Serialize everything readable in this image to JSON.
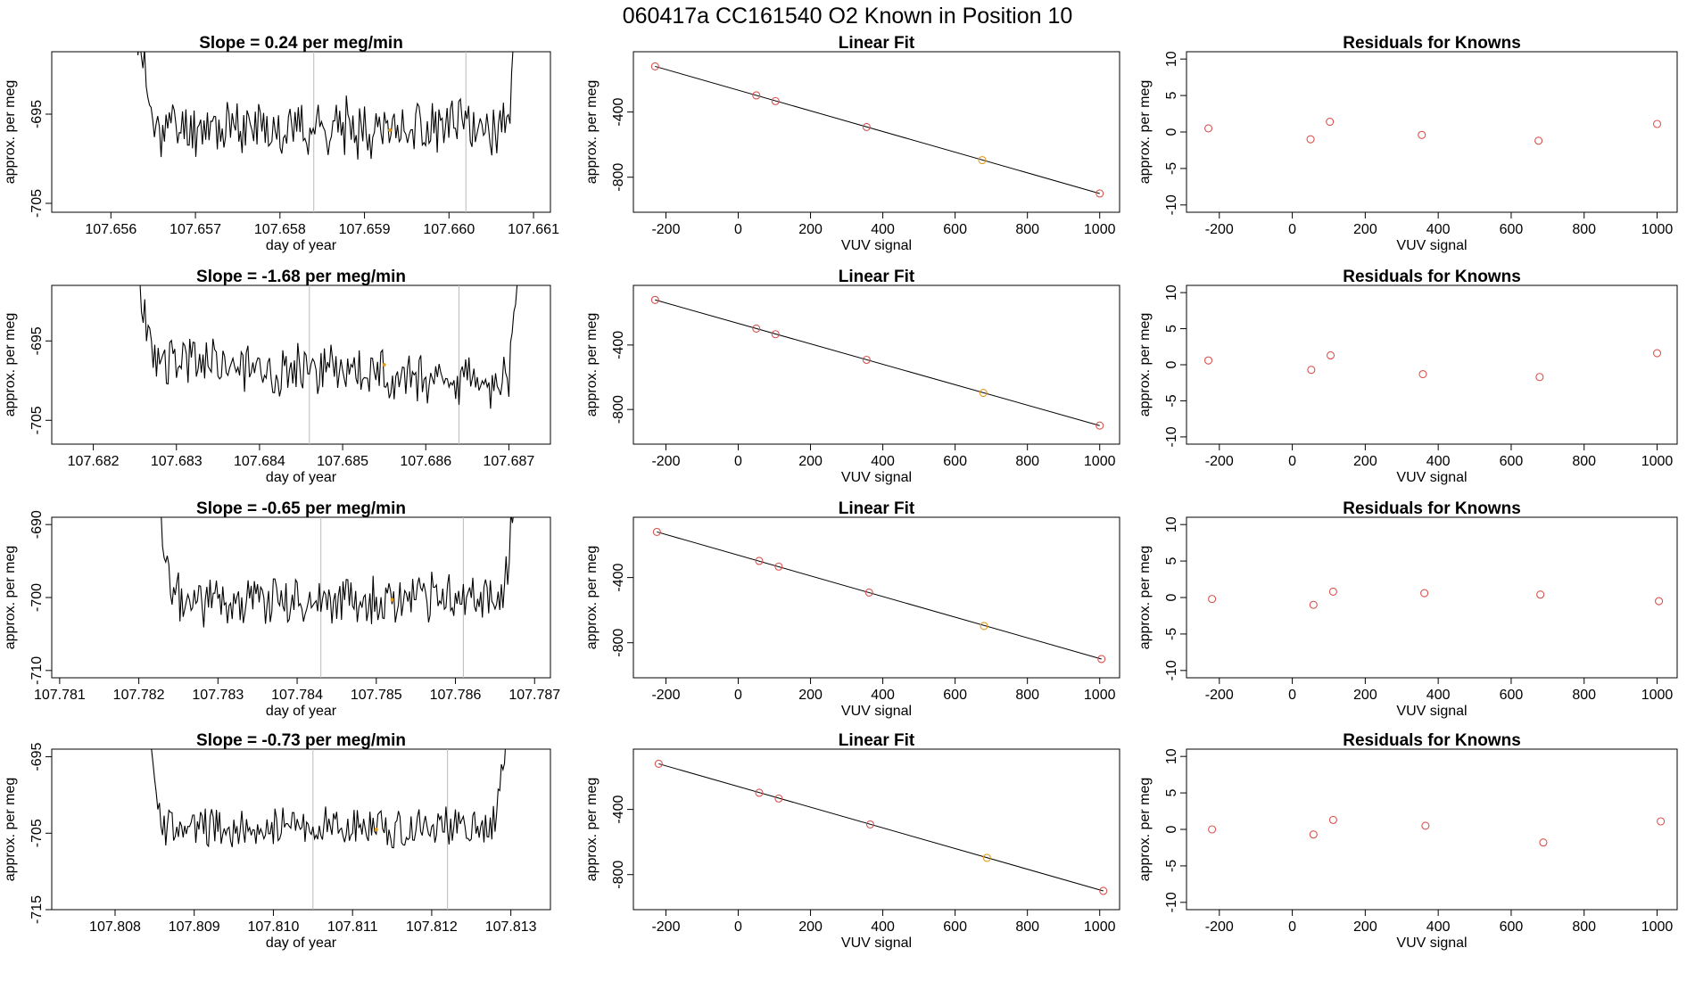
{
  "figure_title": "060417a      CC161540   O2 Known in Position  10",
  "colors": {
    "trace": "#000000",
    "marker_red": "#d9534f",
    "marker_orange": "#e69a1a",
    "vline": "#bbbbbb",
    "frame": "#000000"
  },
  "chart_data": [
    {
      "type": "line",
      "row": 1,
      "title": "Slope =  0.24  per meg/min",
      "xlabel": "day of year",
      "ylabel": "approx. per meg",
      "xlim": [
        107.6553,
        107.6612
      ],
      "ylim": [
        -706,
        -688
      ],
      "xticks": [
        107.656,
        107.657,
        107.658,
        107.659,
        107.66,
        107.661
      ],
      "xtick_labels": [
        "107.656",
        "107.657",
        "107.658",
        "107.659",
        "107.660",
        "107.661"
      ],
      "yticks": [
        -695,
        -705
      ],
      "ytick_labels": [
        "-695",
        "-705"
      ],
      "vlines": [
        107.6584,
        107.6602
      ],
      "trace": {
        "x0": 107.6563,
        "x1": 107.6608,
        "spike_start": 107.6565,
        "spike_end": 107.6607,
        "mean": -696.5,
        "noise": 2.6,
        "ramp_top": -688,
        "seed": 11
      },
      "highlight": {
        "x": 107.6593,
        "y": -696.8
      }
    },
    {
      "type": "scatter",
      "row": 1,
      "title": "Linear Fit",
      "xlabel": "VUV signal",
      "ylabel": "approx. per meg",
      "xlim": [
        -290,
        1055
      ],
      "ylim": [
        -1015,
        -30
      ],
      "xticks": [
        -200,
        0,
        200,
        400,
        600,
        800,
        1000
      ],
      "xtick_labels": [
        "-200",
        "0",
        "200",
        "400",
        "600",
        "800",
        "1000"
      ],
      "yticks": [
        -400,
        -800
      ],
      "ytick_labels": [
        "-400",
        "-800"
      ],
      "fit_line": {
        "x": [
          -230,
          1000
        ],
        "y": [
          -120,
          -900
        ]
      },
      "points": [
        {
          "x": -230,
          "y": -120,
          "color": "red"
        },
        {
          "x": 50,
          "y": -298,
          "color": "red"
        },
        {
          "x": 103,
          "y": -333,
          "color": "red"
        },
        {
          "x": 355,
          "y": -492,
          "color": "red"
        },
        {
          "x": 675,
          "y": -695,
          "color": "orange"
        },
        {
          "x": 1000,
          "y": -900,
          "color": "red"
        }
      ]
    },
    {
      "type": "scatter",
      "row": 1,
      "title": "Residuals for Knowns",
      "xlabel": "VUV signal",
      "ylabel": "approx. per meg",
      "xlim": [
        -290,
        1055
      ],
      "ylim": [
        -11,
        11
      ],
      "xticks": [
        -200,
        0,
        200,
        400,
        600,
        800,
        1000
      ],
      "xtick_labels": [
        "-200",
        "0",
        "200",
        "400",
        "600",
        "800",
        "1000"
      ],
      "yticks": [
        10,
        5,
        0,
        -5,
        -10
      ],
      "ytick_labels": [
        "10",
        "5",
        "0",
        "-5",
        "-10"
      ],
      "points": [
        {
          "x": -230,
          "y": 0.5,
          "color": "red"
        },
        {
          "x": 50,
          "y": -1.0,
          "color": "red"
        },
        {
          "x": 103,
          "y": 1.4,
          "color": "red"
        },
        {
          "x": 355,
          "y": -0.4,
          "color": "red"
        },
        {
          "x": 675,
          "y": -1.2,
          "color": "red"
        },
        {
          "x": 1000,
          "y": 1.1,
          "color": "red"
        }
      ]
    },
    {
      "type": "line",
      "row": 2,
      "title": "Slope =  -1.68  per meg/min",
      "xlabel": "day of year",
      "ylabel": "approx. per meg",
      "xlim": [
        107.6815,
        107.6875
      ],
      "ylim": [
        -708,
        -688
      ],
      "xticks": [
        107.682,
        107.683,
        107.684,
        107.685,
        107.686,
        107.687
      ],
      "xtick_labels": [
        "107.682",
        "107.683",
        "107.684",
        "107.685",
        "107.686",
        "107.687"
      ],
      "yticks": [
        -695,
        -705
      ],
      "ytick_labels": [
        "-695",
        "-705"
      ],
      "vlines": [
        107.6846,
        107.6864
      ],
      "trace": {
        "x0": 107.6825,
        "x1": 107.6871,
        "spike_start": 107.6827,
        "spike_end": 107.687,
        "mean": -697.2,
        "noise": 2.8,
        "ramp_top": -688,
        "seed": 23,
        "drift": -3
      },
      "highlight": {
        "x": 107.6855,
        "y": -698
      }
    },
    {
      "type": "scatter",
      "row": 2,
      "title": "Linear Fit",
      "xlabel": "VUV signal",
      "ylabel": "approx. per meg",
      "xlim": [
        -290,
        1055
      ],
      "ylim": [
        -1015,
        -30
      ],
      "xticks": [
        -200,
        0,
        200,
        400,
        600,
        800,
        1000
      ],
      "xtick_labels": [
        "-200",
        "0",
        "200",
        "400",
        "600",
        "800",
        "1000"
      ],
      "yticks": [
        -400,
        -800
      ],
      "ytick_labels": [
        "-400",
        "-800"
      ],
      "fit_line": {
        "x": [
          -230,
          1000
        ],
        "y": [
          -120,
          -900
        ]
      },
      "points": [
        {
          "x": -230,
          "y": -120,
          "color": "red"
        },
        {
          "x": 50,
          "y": -298,
          "color": "red"
        },
        {
          "x": 103,
          "y": -333,
          "color": "red"
        },
        {
          "x": 355,
          "y": -492,
          "color": "red"
        },
        {
          "x": 678,
          "y": -697,
          "color": "orange"
        },
        {
          "x": 1000,
          "y": -900,
          "color": "red"
        }
      ]
    },
    {
      "type": "scatter",
      "row": 2,
      "title": "Residuals for Knowns",
      "xlabel": "VUV signal",
      "ylabel": "approx. per meg",
      "xlim": [
        -290,
        1055
      ],
      "ylim": [
        -11,
        11
      ],
      "xticks": [
        -200,
        0,
        200,
        400,
        600,
        800,
        1000
      ],
      "xtick_labels": [
        "-200",
        "0",
        "200",
        "400",
        "600",
        "800",
        "1000"
      ],
      "yticks": [
        10,
        5,
        0,
        -5,
        -10
      ],
      "ytick_labels": [
        "10",
        "5",
        "0",
        "-5",
        "-10"
      ],
      "points": [
        {
          "x": -230,
          "y": 0.6,
          "color": "red"
        },
        {
          "x": 52,
          "y": -0.7,
          "color": "red"
        },
        {
          "x": 105,
          "y": 1.3,
          "color": "red"
        },
        {
          "x": 358,
          "y": -1.3,
          "color": "red"
        },
        {
          "x": 678,
          "y": -1.7,
          "color": "red"
        },
        {
          "x": 1000,
          "y": 1.6,
          "color": "red"
        }
      ]
    },
    {
      "type": "line",
      "row": 3,
      "title": "Slope =  -0.65  per meg/min",
      "xlabel": "day of year",
      "ylabel": "approx. per meg",
      "xlim": [
        107.7809,
        107.7872
      ],
      "ylim": [
        -711,
        -689
      ],
      "xticks": [
        107.781,
        107.782,
        107.783,
        107.784,
        107.785,
        107.786,
        107.787
      ],
      "xtick_labels": [
        "107.781",
        "107.782",
        "107.783",
        "107.784",
        "107.785",
        "107.786",
        "107.787"
      ],
      "yticks": [
        -690,
        -700,
        -710
      ],
      "ytick_labels": [
        "-690",
        "-700",
        "-710"
      ],
      "vlines": [
        107.7843,
        107.7861
      ],
      "trace": {
        "x0": 107.7822,
        "x1": 107.7868,
        "spike_start": 107.7824,
        "spike_end": 107.7866,
        "mean": -700.2,
        "noise": 3.0,
        "ramp_top": -689,
        "seed": 37
      },
      "highlight": {
        "x": 107.7852,
        "y": -700.3
      }
    },
    {
      "type": "scatter",
      "row": 3,
      "title": "Linear Fit",
      "xlabel": "VUV signal",
      "ylabel": "approx. per meg",
      "xlim": [
        -290,
        1055
      ],
      "ylim": [
        -1015,
        -30
      ],
      "xticks": [
        -200,
        0,
        200,
        400,
        600,
        800,
        1000
      ],
      "xtick_labels": [
        "-200",
        "0",
        "200",
        "400",
        "600",
        "800",
        "1000"
      ],
      "yticks": [
        -400,
        -800
      ],
      "ytick_labels": [
        "-400",
        "-800"
      ],
      "fit_line": {
        "x": [
          -225,
          1005
        ],
        "y": [
          -120,
          -900
        ]
      },
      "points": [
        {
          "x": -225,
          "y": -120,
          "color": "red"
        },
        {
          "x": 58,
          "y": -298,
          "color": "red"
        },
        {
          "x": 112,
          "y": -333,
          "color": "red"
        },
        {
          "x": 362,
          "y": -492,
          "color": "red"
        },
        {
          "x": 680,
          "y": -697,
          "color": "orange"
        },
        {
          "x": 1005,
          "y": -900,
          "color": "red"
        }
      ]
    },
    {
      "type": "scatter",
      "row": 3,
      "title": "Residuals for Knowns",
      "xlabel": "VUV signal",
      "ylabel": "approx. per meg",
      "xlim": [
        -290,
        1055
      ],
      "ylim": [
        -11,
        11
      ],
      "xticks": [
        -200,
        0,
        200,
        400,
        600,
        800,
        1000
      ],
      "xtick_labels": [
        "-200",
        "0",
        "200",
        "400",
        "600",
        "800",
        "1000"
      ],
      "yticks": [
        10,
        5,
        0,
        -5,
        -10
      ],
      "ytick_labels": [
        "10",
        "5",
        "0",
        "-5",
        "-10"
      ],
      "points": [
        {
          "x": -220,
          "y": -0.2,
          "color": "red"
        },
        {
          "x": 58,
          "y": -1.0,
          "color": "red"
        },
        {
          "x": 112,
          "y": 0.8,
          "color": "red"
        },
        {
          "x": 362,
          "y": 0.6,
          "color": "red"
        },
        {
          "x": 680,
          "y": 0.4,
          "color": "red"
        },
        {
          "x": 1005,
          "y": -0.5,
          "color": "red"
        }
      ]
    },
    {
      "type": "line",
      "row": 4,
      "title": "Slope =  -0.73  per meg/min",
      "xlabel": "day of year",
      "ylabel": "approx. per meg",
      "xlim": [
        107.8072,
        107.8135
      ],
      "ylim": [
        -715,
        -694
      ],
      "xticks": [
        107.808,
        107.809,
        107.81,
        107.811,
        107.812,
        107.813
      ],
      "xtick_labels": [
        "107.808",
        "107.809",
        "107.810",
        "107.811",
        "107.812",
        "107.813"
      ],
      "yticks": [
        -695,
        -705,
        -715
      ],
      "ytick_labels": [
        "-695",
        "-705",
        "-715"
      ],
      "vlines": [
        107.8105,
        107.8122
      ],
      "trace": {
        "x0": 107.8084,
        "x1": 107.813,
        "spike_start": 107.8086,
        "spike_end": 107.8128,
        "mean": -704.3,
        "noise": 2.2,
        "ramp_top": -694,
        "seed": 53
      },
      "highlight": {
        "x": 107.8113,
        "y": -704.5
      }
    },
    {
      "type": "scatter",
      "row": 4,
      "title": "Linear Fit",
      "xlabel": "VUV signal",
      "ylabel": "approx. per meg",
      "xlim": [
        -290,
        1055
      ],
      "ylim": [
        -1015,
        -30
      ],
      "xticks": [
        -200,
        0,
        200,
        400,
        600,
        800,
        1000
      ],
      "xtick_labels": [
        "-200",
        "0",
        "200",
        "400",
        "600",
        "800",
        "1000"
      ],
      "yticks": [
        -400,
        -800
      ],
      "ytick_labels": [
        "-400",
        "-800"
      ],
      "fit_line": {
        "x": [
          -220,
          1010
        ],
        "y": [
          -120,
          -900
        ]
      },
      "points": [
        {
          "x": -220,
          "y": -120,
          "color": "red"
        },
        {
          "x": 58,
          "y": -298,
          "color": "red"
        },
        {
          "x": 112,
          "y": -333,
          "color": "red"
        },
        {
          "x": 365,
          "y": -492,
          "color": "red"
        },
        {
          "x": 688,
          "y": -697,
          "color": "orange"
        },
        {
          "x": 1010,
          "y": -900,
          "color": "red"
        }
      ]
    },
    {
      "type": "scatter",
      "row": 4,
      "title": "Residuals for Knowns",
      "xlabel": "VUV signal",
      "ylabel": "approx. per meg",
      "xlim": [
        -290,
        1055
      ],
      "ylim": [
        -11,
        11
      ],
      "xticks": [
        -200,
        0,
        200,
        400,
        600,
        800,
        1000
      ],
      "xtick_labels": [
        "-200",
        "0",
        "200",
        "400",
        "600",
        "800",
        "1000"
      ],
      "yticks": [
        10,
        5,
        0,
        -5,
        -10
      ],
      "ytick_labels": [
        "10",
        "5",
        "0",
        "-5",
        "-10"
      ],
      "points": [
        {
          "x": -220,
          "y": 0.0,
          "color": "red"
        },
        {
          "x": 58,
          "y": -0.7,
          "color": "red"
        },
        {
          "x": 112,
          "y": 1.3,
          "color": "red"
        },
        {
          "x": 365,
          "y": 0.5,
          "color": "red"
        },
        {
          "x": 688,
          "y": -1.8,
          "color": "red"
        },
        {
          "x": 1010,
          "y": 1.1,
          "color": "red"
        }
      ]
    }
  ]
}
